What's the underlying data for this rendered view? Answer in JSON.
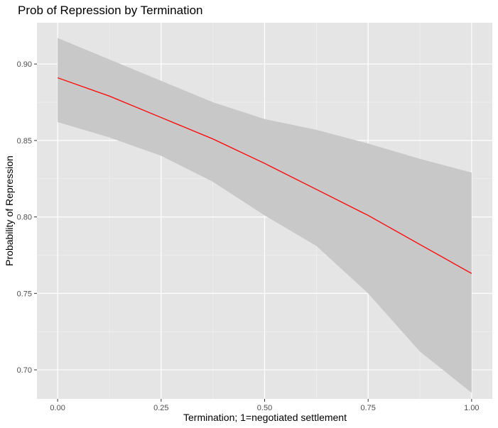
{
  "chart_data": {
    "type": "line",
    "title": "Prob of Repression by Termination",
    "xlabel": "Termination; 1=negotiated settlement",
    "ylabel": "Probability of Repression",
    "xlim": [
      -0.05,
      1.05
    ],
    "ylim": [
      0.681,
      0.927
    ],
    "x_ticks": [
      0.0,
      0.25,
      0.5,
      0.75,
      1.0
    ],
    "x_tick_labels": [
      "0.00",
      "0.25",
      "0.50",
      "0.75",
      "1.00"
    ],
    "y_ticks": [
      0.7,
      0.75,
      0.8,
      0.85,
      0.9
    ],
    "y_tick_labels": [
      "0.70",
      "0.75",
      "0.80",
      "0.85",
      "0.90"
    ],
    "grid": true,
    "series": [
      {
        "color": "#ff0000",
        "x": [
          0.0,
          0.125,
          0.25,
          0.375,
          0.5,
          0.625,
          0.75,
          0.875,
          1.0
        ],
        "y": [
          0.891,
          0.879,
          0.865,
          0.851,
          0.835,
          0.818,
          0.801,
          0.782,
          0.763
        ],
        "ribbon_lower": [
          0.862,
          0.852,
          0.84,
          0.823,
          0.801,
          0.781,
          0.75,
          0.712,
          0.685
        ],
        "ribbon_upper": [
          0.917,
          0.903,
          0.889,
          0.875,
          0.864,
          0.857,
          0.848,
          0.838,
          0.829
        ],
        "ribbon_color": "#c8c8c8"
      }
    ]
  }
}
